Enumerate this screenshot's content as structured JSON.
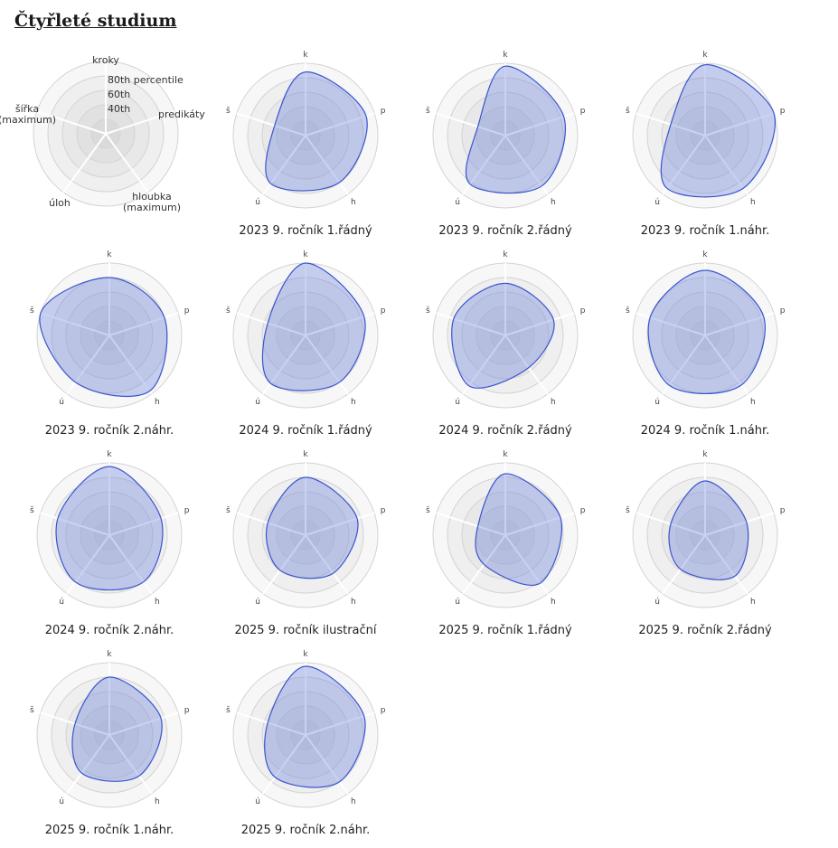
{
  "page": {
    "title": "Čtyřleté studium"
  },
  "legend": {
    "axes": [
      "kroky",
      "predikáty",
      "hloubka (maximum)",
      "úloh",
      "šířka (maximum)"
    ],
    "rings": [
      "80th percentile",
      "60th",
      "40th"
    ]
  },
  "chart_data": {
    "type": "radar",
    "axes_short": [
      "k",
      "p",
      "h",
      "ú",
      "š"
    ],
    "axes_full": [
      "kroky",
      "predikáty",
      "hloubka (maximum)",
      "úloh",
      "šířka (maximum)"
    ],
    "range": [
      0,
      100
    ],
    "rings": [
      20,
      40,
      60,
      80,
      100
    ],
    "panels": [
      {
        "label": "2023 9. ročník 1.řádný",
        "values": [
          88,
          88,
          80,
          82,
          45
        ]
      },
      {
        "label": "2023 9. ročník 2.řádný",
        "values": [
          96,
          85,
          86,
          83,
          40
        ]
      },
      {
        "label": "2023 9. ročník 1.náhr.",
        "values": [
          98,
          100,
          90,
          90,
          50
        ]
      },
      {
        "label": "2023 9. ročník 2.náhr.",
        "values": [
          80,
          80,
          95,
          80,
          100
        ]
      },
      {
        "label": "2024 9. ročník 1.řádný",
        "values": [
          100,
          85,
          80,
          82,
          55
        ]
      },
      {
        "label": "2024 9. ročník 2.řádný",
        "values": [
          72,
          70,
          55,
          86,
          75
        ]
      },
      {
        "label": "2024 9. ročník 1.náhr.",
        "values": [
          90,
          85,
          85,
          85,
          80
        ]
      },
      {
        "label": "2024 9. ročník 2.náhr.",
        "values": [
          95,
          75,
          80,
          80,
          75
        ]
      },
      {
        "label": "2025 9. ročník ilustrační",
        "values": [
          80,
          75,
          65,
          60,
          55
        ]
      },
      {
        "label": "2025 9. ročník 1.řádný",
        "values": [
          85,
          80,
          82,
          50,
          40
        ]
      },
      {
        "label": "2025 9. ročník 2.řádný",
        "values": [
          75,
          60,
          70,
          58,
          50
        ]
      },
      {
        "label": "2025 9. ročník 1.náhr.",
        "values": [
          80,
          75,
          70,
          65,
          50
        ]
      },
      {
        "label": "2025 9. ročník 2.náhr.",
        "values": [
          95,
          85,
          80,
          72,
          55
        ]
      }
    ]
  }
}
